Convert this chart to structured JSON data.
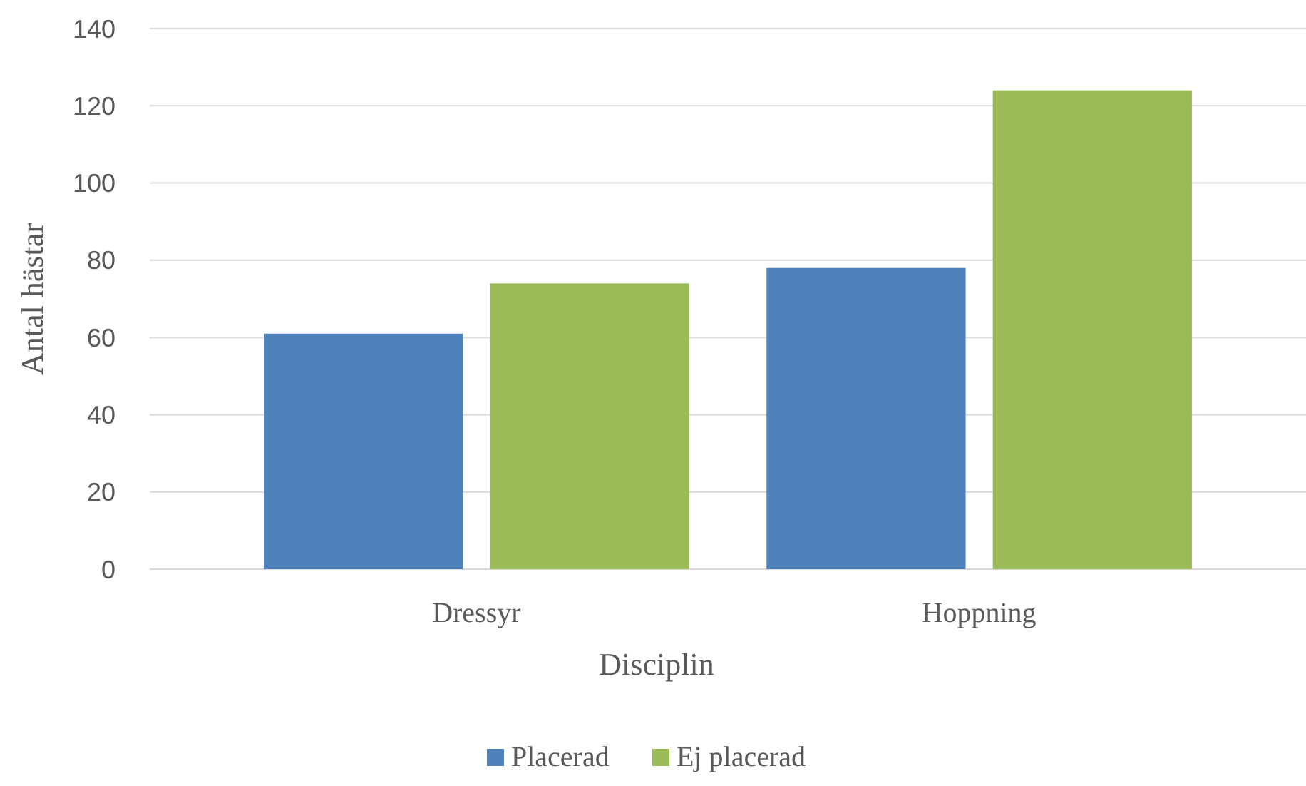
{
  "chart_data": {
    "type": "bar",
    "xlabel": "Disciplin",
    "ylabel": "Antal hästar",
    "categories": [
      "Dressyr",
      "Hoppning"
    ],
    "series": [
      {
        "name": "Placerad",
        "color": "#4f81bd",
        "values": [
          61,
          78
        ]
      },
      {
        "name": "Ej placerad",
        "color": "#9bbb59",
        "values": [
          74,
          124
        ]
      }
    ],
    "ylim": [
      0,
      140
    ],
    "yticks": [
      0,
      20,
      40,
      60,
      80,
      100,
      120,
      140
    ],
    "grid": "y",
    "legend": "bottom"
  }
}
